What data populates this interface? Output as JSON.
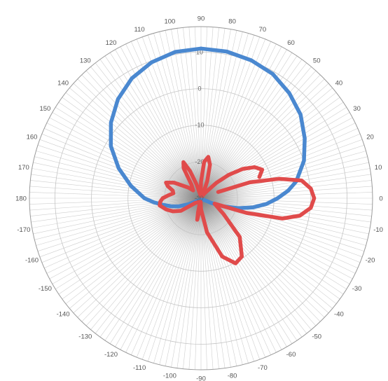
{
  "chart_data": {
    "type": "polar-line",
    "title": "",
    "angle_unit": "degrees",
    "angle_ticks": [
      90,
      80,
      70,
      60,
      50,
      40,
      30,
      20,
      10,
      0,
      -10,
      -20,
      -30,
      -40,
      -50,
      -60,
      -70,
      -80,
      -90,
      -100,
      -110,
      -120,
      -130,
      -140,
      -150,
      -160,
      -170,
      180,
      170,
      160,
      150,
      140,
      130,
      120,
      110,
      100
    ],
    "radial_ticks": [
      10,
      0,
      -10,
      -20,
      -30
    ],
    "radial_range": [
      -30,
      17
    ],
    "center_label": "-30",
    "grid": true,
    "legend": "none",
    "colors": {
      "series_1": "#4a88d0",
      "series_2": "#e04b4b",
      "grid": "#c4c4c4"
    },
    "series": [
      {
        "color": "#4a88d0",
        "points": [
          {
            "angle": 90,
            "value": 11
          },
          {
            "angle": 80,
            "value": 10.8
          },
          {
            "angle": 70,
            "value": 10.2
          },
          {
            "angle": 60,
            "value": 9.3
          },
          {
            "angle": 50,
            "value": 7.6
          },
          {
            "angle": 40,
            "value": 5.6
          },
          {
            "angle": 30,
            "value": 2.8
          },
          {
            "angle": 20,
            "value": 0
          },
          {
            "angle": 10,
            "value": -3.5
          },
          {
            "angle": 5,
            "value": -6
          },
          {
            "angle": 0,
            "value": -9
          },
          {
            "angle": -5,
            "value": -12
          },
          {
            "angle": -10,
            "value": -15.5
          },
          {
            "angle": -15,
            "value": -19.5
          },
          {
            "angle": -20,
            "value": -23.5
          },
          {
            "angle": -25,
            "value": -27
          },
          {
            "angle": -30,
            "value": -29
          },
          {
            "angle": -60,
            "value": -29.5
          },
          {
            "angle": -120,
            "value": -29.5
          },
          {
            "angle": -150,
            "value": -28
          },
          {
            "angle": -155,
            "value": -26
          },
          {
            "angle": -160,
            "value": -23.5
          },
          {
            "angle": -165,
            "value": -21.5
          },
          {
            "angle": -170,
            "value": -19.5
          },
          {
            "angle": -175,
            "value": -17
          },
          {
            "angle": 180,
            "value": -14.5
          },
          {
            "angle": 170,
            "value": -10.5
          },
          {
            "angle": 160,
            "value": -6
          },
          {
            "angle": 150,
            "value": -1.5
          },
          {
            "angle": 140,
            "value": 2.2
          },
          {
            "angle": 130,
            "value": 5.4
          },
          {
            "angle": 120,
            "value": 7.9
          },
          {
            "angle": 110,
            "value": 9.6
          },
          {
            "angle": 100,
            "value": 10.7
          },
          {
            "angle": 90,
            "value": 11
          }
        ]
      },
      {
        "color": "#e04b4b",
        "points": [
          {
            "angle": 20,
            "value": -25
          },
          {
            "angle": 18,
            "value": -16
          },
          {
            "angle": 14,
            "value": -8
          },
          {
            "angle": 10,
            "value": -2
          },
          {
            "angle": 5,
            "value": 0.2
          },
          {
            "angle": 0,
            "value": 1
          },
          {
            "angle": -5,
            "value": 0.2
          },
          {
            "angle": -10,
            "value": -2.5
          },
          {
            "angle": -14,
            "value": -7
          },
          {
            "angle": -18,
            "value": -17
          },
          {
            "angle": -22,
            "value": -26
          },
          {
            "angle": -35,
            "value": -22.5
          },
          {
            "angle": -45,
            "value": -15
          },
          {
            "angle": -55,
            "value": -10.5
          },
          {
            "angle": -62,
            "value": -9.8
          },
          {
            "angle": -70,
            "value": -13
          },
          {
            "angle": -80,
            "value": -20.5
          },
          {
            "angle": -90,
            "value": -27
          },
          {
            "angle": -95,
            "value": -29
          },
          {
            "angle": -98,
            "value": -26
          },
          {
            "angle": -100,
            "value": -24
          },
          {
            "angle": -102,
            "value": -26
          },
          {
            "angle": -105,
            "value": -29
          },
          {
            "angle": -140,
            "value": -28
          },
          {
            "angle": -148,
            "value": -23.5
          },
          {
            "angle": -155,
            "value": -21.5
          },
          {
            "angle": -162,
            "value": -20
          },
          {
            "angle": -170,
            "value": -18.5
          },
          {
            "angle": -175,
            "value": -18.8
          },
          {
            "angle": 180,
            "value": -19.5
          },
          {
            "angle": 175,
            "value": -21
          },
          {
            "angle": 170,
            "value": -22.3
          },
          {
            "angle": 165,
            "value": -22
          },
          {
            "angle": 160,
            "value": -20.3
          },
          {
            "angle": 156,
            "value": -19.5
          },
          {
            "angle": 150,
            "value": -21.5
          },
          {
            "angle": 140,
            "value": -25.5
          },
          {
            "angle": 135,
            "value": -27
          },
          {
            "angle": 125,
            "value": -25.5
          },
          {
            "angle": 120,
            "value": -20.5
          },
          {
            "angle": 116,
            "value": -19
          },
          {
            "angle": 112,
            "value": -22
          },
          {
            "angle": 108,
            "value": -26
          },
          {
            "angle": 100,
            "value": -29.3
          },
          {
            "angle": 90,
            "value": -25.5
          },
          {
            "angle": 85,
            "value": -20
          },
          {
            "angle": 80,
            "value": -18.5
          },
          {
            "angle": 75,
            "value": -20.5
          },
          {
            "angle": 70,
            "value": -25
          },
          {
            "angle": 65,
            "value": -28.5
          },
          {
            "angle": 60,
            "value": -29.3
          },
          {
            "angle": 52,
            "value": -28
          },
          {
            "angle": 45,
            "value": -24
          },
          {
            "angle": 40,
            "value": -20
          },
          {
            "angle": 35,
            "value": -16
          },
          {
            "angle": 30,
            "value": -13
          },
          {
            "angle": 25,
            "value": -11.5
          },
          {
            "angle": 20,
            "value": -13
          }
        ]
      }
    ]
  }
}
